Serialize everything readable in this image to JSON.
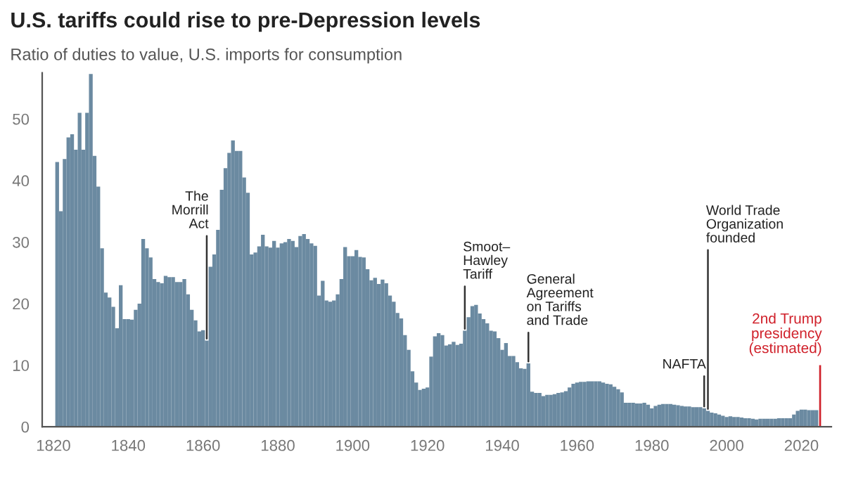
{
  "chart_data": {
    "type": "bar",
    "title": "U.S. tariffs could rise to pre-Depression levels",
    "subtitle": "Ratio of duties to value, U.S. imports for consumption",
    "series": [
      {
        "color": "#6b8aa1",
        "x": [
          1821,
          1822,
          1823,
          1824,
          1825,
          1826,
          1827,
          1828,
          1829,
          1830,
          1831,
          1832,
          1833,
          1834,
          1835,
          1836,
          1837,
          1838,
          1839,
          1840,
          1841,
          1842,
          1843,
          1844,
          1845,
          1846,
          1847,
          1848,
          1849,
          1850,
          1851,
          1852,
          1853,
          1854,
          1855,
          1856,
          1857,
          1858,
          1859,
          1860,
          1861,
          1862,
          1863,
          1864,
          1865,
          1866,
          1867,
          1868,
          1869,
          1870,
          1871,
          1872,
          1873,
          1874,
          1875,
          1876,
          1877,
          1878,
          1879,
          1880,
          1881,
          1882,
          1883,
          1884,
          1885,
          1886,
          1887,
          1888,
          1889,
          1890,
          1891,
          1892,
          1893,
          1894,
          1895,
          1896,
          1897,
          1898,
          1899,
          1900,
          1901,
          1902,
          1903,
          1904,
          1905,
          1906,
          1907,
          1908,
          1909,
          1910,
          1911,
          1912,
          1913,
          1914,
          1915,
          1916,
          1917,
          1918,
          1919,
          1920,
          1921,
          1922,
          1923,
          1924,
          1925,
          1926,
          1927,
          1928,
          1929,
          1930,
          1931,
          1932,
          1933,
          1934,
          1935,
          1936,
          1937,
          1938,
          1939,
          1940,
          1941,
          1942,
          1943,
          1944,
          1945,
          1946,
          1947,
          1948,
          1949,
          1950,
          1951,
          1952,
          1953,
          1954,
          1955,
          1956,
          1957,
          1958,
          1959,
          1960,
          1961,
          1962,
          1963,
          1964,
          1965,
          1966,
          1967,
          1968,
          1969,
          1970,
          1971,
          1972,
          1973,
          1974,
          1975,
          1976,
          1977,
          1978,
          1979,
          1980,
          1981,
          1982,
          1983,
          1984,
          1985,
          1986,
          1987,
          1988,
          1989,
          1990,
          1991,
          1992,
          1993,
          1994,
          1995,
          1996,
          1997,
          1998,
          1999,
          2000,
          2001,
          2002,
          2003,
          2004,
          2005,
          2006,
          2007,
          2008,
          2009,
          2010,
          2011,
          2012,
          2013,
          2014,
          2015,
          2016,
          2017,
          2018,
          2019,
          2020,
          2021,
          2022,
          2023,
          2024
        ],
        "values": [
          43,
          35,
          43.5,
          47,
          47.5,
          45,
          51,
          45,
          51,
          57.3,
          44,
          39,
          29,
          21.8,
          21,
          19.5,
          16,
          23,
          17.5,
          17.5,
          17.4,
          19,
          20,
          30.5,
          29,
          27.5,
          24,
          23.5,
          23.3,
          24.5,
          24.3,
          24.3,
          23.5,
          23.5,
          24,
          21.5,
          19,
          17.3,
          15.5,
          15.7,
          14,
          26,
          28,
          32,
          38.5,
          42,
          44.5,
          46.5,
          44.8,
          44.8,
          40.5,
          38,
          28,
          28.3,
          29.3,
          31.2,
          29.3,
          29.1,
          30.2,
          29.1,
          29.8,
          30,
          30.5,
          30.2,
          29.2,
          31,
          31.3,
          30.5,
          29.8,
          29.4,
          21.3,
          23.7,
          20.5,
          20.3,
          20.5,
          21.5,
          24,
          29.2,
          27.7,
          27.7,
          28.7,
          27.6,
          27.5,
          25.6,
          23.8,
          24.2,
          23.2,
          23.9,
          23.3,
          21.3,
          20.3,
          18.5,
          17.6,
          14.9,
          12.5,
          9,
          7.2,
          6,
          6.2,
          6.4,
          11.4,
          14.7,
          15.2,
          14.9,
          13.2,
          13.4,
          13.8,
          13.3,
          13.5,
          15.6,
          17.8,
          19.6,
          19.8,
          18.4,
          17.5,
          16.8,
          15.6,
          15.5,
          14.4,
          12.5,
          13.6,
          11.5,
          11.5,
          10.5,
          9.5,
          9.4,
          10.3,
          5.7,
          5.5,
          5.5,
          5,
          5.2,
          5.2,
          5.3,
          5.5,
          5.6,
          5.8,
          6.4,
          7,
          7.2,
          7.3,
          7.3,
          7.4,
          7.4,
          7.4,
          7.4,
          7.2,
          7,
          6.9,
          6.5,
          6.1,
          5.6,
          3.9,
          3.9,
          3.9,
          3.8,
          3.8,
          3.9,
          3.6,
          3,
          3.4,
          3.6,
          3.7,
          3.7,
          3.7,
          3.6,
          3.5,
          3.4,
          3.3,
          3.3,
          3.2,
          3.2,
          3.2,
          3,
          2.6,
          2.3,
          2.2,
          2,
          1.8,
          1.6,
          1.7,
          1.6,
          1.6,
          1.5,
          1.4,
          1.4,
          1.3,
          1.2,
          1.3,
          1.3,
          1.3,
          1.3,
          1.3,
          1.4,
          1.4,
          1.4,
          1.4,
          2,
          2.6,
          2.8,
          2.8,
          2.7,
          2.7,
          2.7
        ]
      },
      {
        "name": "2nd Trump\npresidency\n(estimated)",
        "color": "#d0202a",
        "x": [
          2025
        ],
        "values": [
          10
        ]
      }
    ],
    "annotations": [
      {
        "text": "The\nMorrill\nAct",
        "x": 1861,
        "y": 14
      },
      {
        "text": "Smoot–\nHawley\nTariff",
        "x": 1930,
        "y": 15.6
      },
      {
        "text": "General\nAgreement\non Tariffs\nand Trade",
        "x": 1947,
        "y": 10.3
      },
      {
        "text": "NAFTA",
        "x": 1994,
        "y": 3
      },
      {
        "text": "World Trade\nOrganization\nfounded",
        "x": 1995,
        "y": 2.6
      }
    ],
    "xlim": [
      1817,
      2028
    ],
    "xticks": [
      1820,
      1840,
      1860,
      1880,
      1900,
      1920,
      1940,
      1960,
      1980,
      2000,
      2020
    ],
    "ylim": [
      0,
      57.5
    ],
    "yticks": [
      0,
      10,
      20,
      30,
      40,
      50
    ],
    "grid": false,
    "legend": false
  }
}
